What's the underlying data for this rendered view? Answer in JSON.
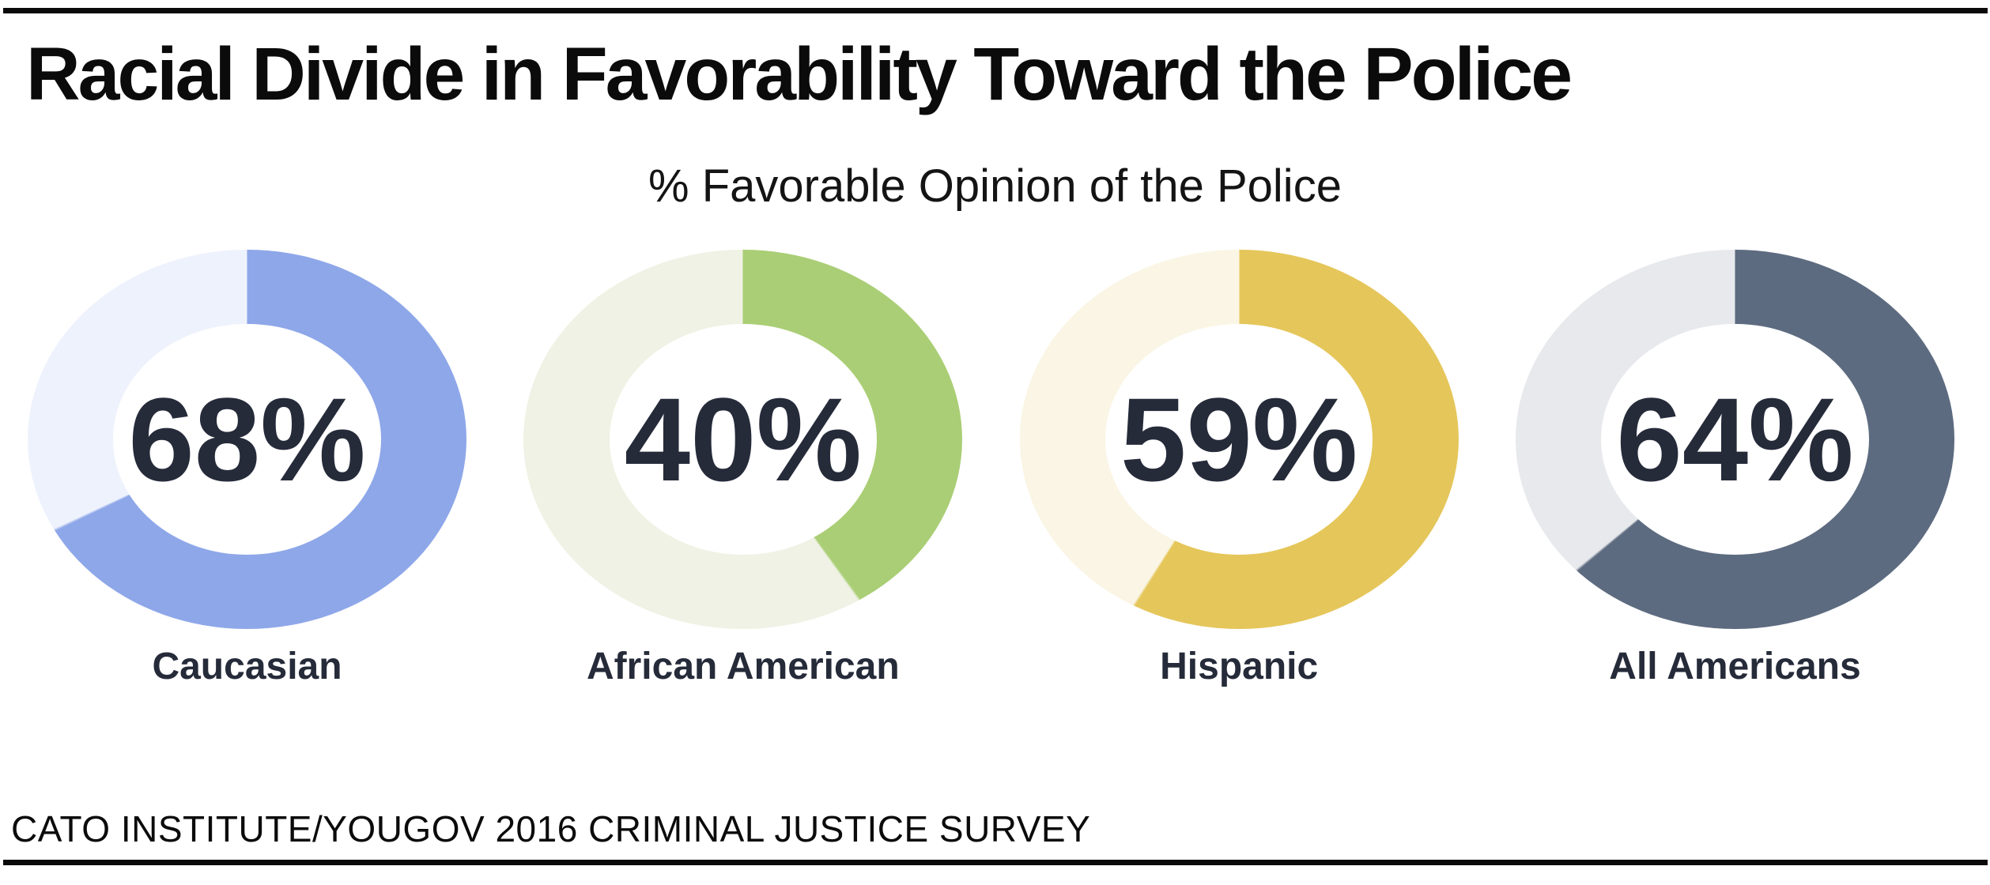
{
  "page": {
    "title": "Racial Divide in Favorability Toward the Police",
    "subtitle": "% Favorable Opinion of the Police",
    "source": "CATO INSTITUTE/YOUGOV 2016 CRIMINAL JUSTICE SURVEY"
  },
  "colors": {
    "rule": "#0a0a0a",
    "background": "#ffffff",
    "value_text": "#262b3a"
  },
  "chart_data": {
    "type": "pie",
    "variant": "donut-small-multiples",
    "title": "Racial Divide in Favorability Toward the Police",
    "subtitle": "% Favorable Opinion of the Police",
    "source": "CATO INSTITUTE/YOUGOV 2016 CRIMINAL JUSTICE SURVEY",
    "unit": "percent",
    "start_angle": "top",
    "direction": "clockwise",
    "categories": [
      "Caucasian",
      "African American",
      "Hispanic",
      "All Americans"
    ],
    "values": [
      68,
      40,
      59,
      64
    ],
    "segments": [
      {
        "label": "Caucasian",
        "value": 68,
        "display": "68%",
        "fill_color": "#8ea7e9",
        "track_color": "#eef2fc"
      },
      {
        "label": "African American",
        "value": 40,
        "display": "40%",
        "fill_color": "#aace75",
        "track_color": "#eff2e4"
      },
      {
        "label": "Hispanic",
        "value": 59,
        "display": "59%",
        "fill_color": "#e5c65a",
        "track_color": "#faf5e4"
      },
      {
        "label": "All Americans",
        "value": 64,
        "display": "64%",
        "fill_color": "#5d6b80",
        "track_color": "#e8e9ed"
      }
    ]
  }
}
